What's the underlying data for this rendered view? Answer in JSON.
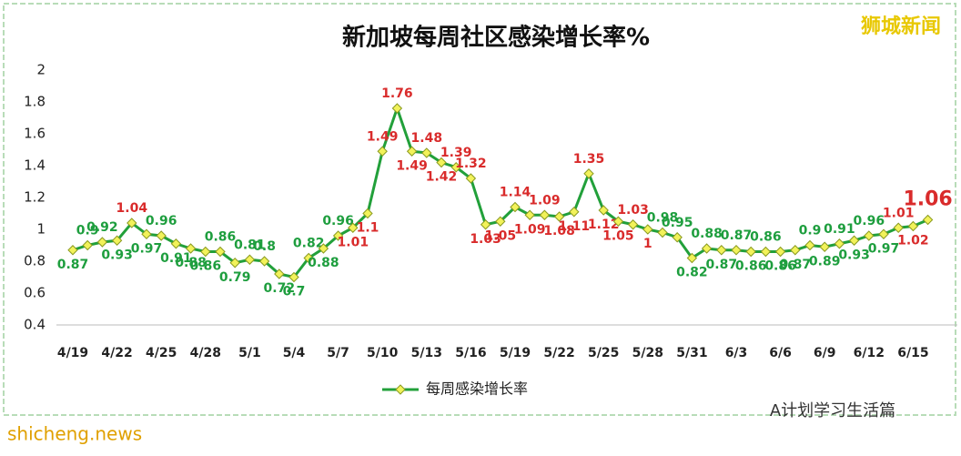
{
  "chart_data": {
    "type": "line",
    "title": "新加坡每周社区感染增长率%",
    "watermark": "狮城新闻",
    "footer_left": "shicheng.news",
    "footer_right": "A计划学习生活篇",
    "categories": [
      "4/19",
      null,
      null,
      "4/22",
      null,
      null,
      "4/25",
      null,
      null,
      "4/28",
      null,
      null,
      "5/1",
      null,
      null,
      "5/4",
      null,
      null,
      "5/7",
      null,
      null,
      "5/10",
      null,
      null,
      "5/13",
      null,
      null,
      "5/16",
      null,
      null,
      "5/19",
      null,
      null,
      "5/22",
      null,
      null,
      "5/25",
      null,
      null,
      "5/28",
      null,
      null,
      "5/31",
      null,
      null,
      "6/3",
      null,
      null,
      "6/6",
      null,
      null,
      "6/9",
      null,
      null,
      "6/12",
      null,
      null,
      "6/15",
      null
    ],
    "series": [
      {
        "name": "每周感染增长率",
        "color": "#22a03a",
        "marker_color": "#f2f25a",
        "label_color": "#1e9e3e",
        "high_label_color": "#d92b2b",
        "high_label_from": 1,
        "values": [
          0.87,
          0.9,
          0.92,
          0.93,
          1.04,
          0.97,
          0.96,
          0.91,
          0.88,
          0.86,
          0.86,
          0.79,
          0.81,
          0.8,
          0.72,
          0.7,
          0.82,
          0.88,
          0.96,
          1.01,
          1.1,
          1.49,
          1.76,
          1.49,
          1.48,
          1.42,
          1.39,
          1.32,
          1.03,
          1.05,
          1.14,
          1.09,
          1.09,
          1.08,
          1.11,
          1.35,
          1.12,
          1.05,
          1.03,
          1,
          0.98,
          0.95,
          0.82,
          0.88,
          0.87,
          0.87,
          0.86,
          0.86,
          0.86,
          0.87,
          0.9,
          0.89,
          0.91,
          0.93,
          0.96,
          0.97,
          1.01,
          1.02,
          1.06
        ]
      }
    ],
    "ylim": [
      0.4,
      2
    ],
    "yticks": [
      0.4,
      0.6,
      0.8,
      1,
      1.2,
      1.4,
      1.6,
      1.8,
      2
    ],
    "grid": false,
    "legend": "bottom"
  }
}
